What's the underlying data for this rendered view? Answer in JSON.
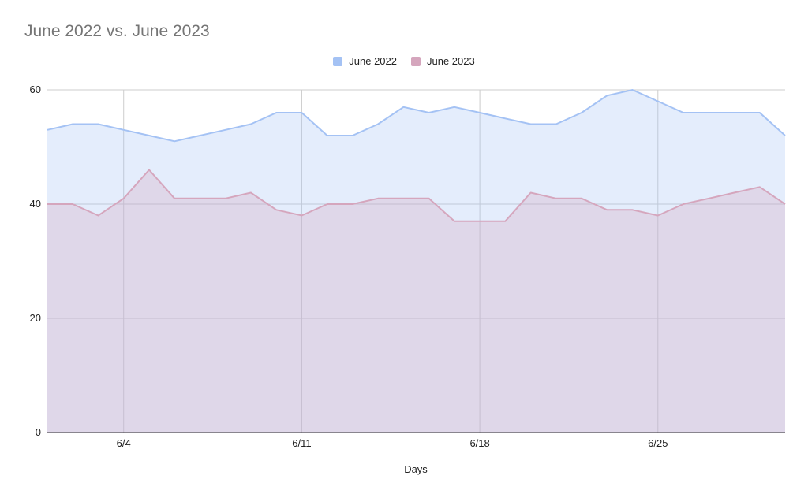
{
  "chart_data": {
    "type": "area",
    "title": "June 2022 vs. June 2023",
    "xlabel": "Days",
    "ylabel": "",
    "x": [
      "6/1",
      "6/2",
      "6/3",
      "6/4",
      "6/5",
      "6/6",
      "6/7",
      "6/8",
      "6/9",
      "6/10",
      "6/11",
      "6/12",
      "6/13",
      "6/14",
      "6/15",
      "6/16",
      "6/17",
      "6/18",
      "6/19",
      "6/20",
      "6/21",
      "6/22",
      "6/23",
      "6/24",
      "6/25",
      "6/26",
      "6/27",
      "6/28",
      "6/29",
      "6/30"
    ],
    "x_tick_labels": [
      "6/4",
      "6/11",
      "6/18",
      "6/25"
    ],
    "y_ticks": [
      0,
      20,
      40,
      60
    ],
    "ylim": [
      0,
      60
    ],
    "grid": true,
    "legend_position": "top",
    "series": [
      {
        "name": "June 2022",
        "color": "#a4c2f4",
        "values": [
          53,
          54,
          54,
          53,
          52,
          51,
          52,
          53,
          54,
          56,
          56,
          52,
          52,
          54,
          57,
          56,
          57,
          56,
          55,
          54,
          54,
          56,
          59,
          60,
          58,
          56,
          56,
          56,
          56,
          52
        ]
      },
      {
        "name": "June 2023",
        "color": "#d5a6bd",
        "values": [
          40,
          40,
          38,
          41,
          46,
          41,
          41,
          41,
          42,
          39,
          38,
          40,
          40,
          41,
          41,
          41,
          37,
          37,
          37,
          42,
          41,
          41,
          39,
          39,
          38,
          40,
          41,
          42,
          43,
          40
        ]
      }
    ]
  }
}
